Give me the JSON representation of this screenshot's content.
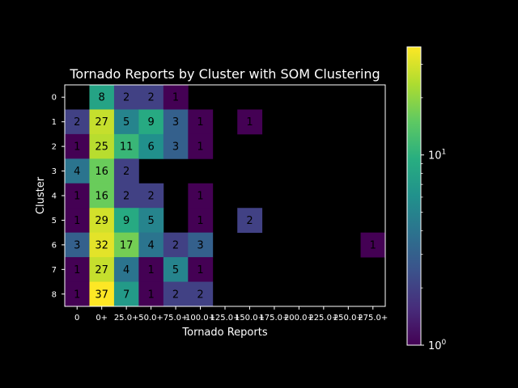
{
  "chart_data": {
    "type": "heatmap",
    "title": "Tornado Reports by Cluster with SOM Clustering",
    "xlabel": "Tornado Reports",
    "ylabel": "Cluster",
    "x_categories": [
      "0",
      "0+",
      "25.0+",
      "50.0+",
      "75.0+",
      "100.0+",
      "125.0+",
      "150.0+",
      "175.0+",
      "200.0+",
      "225.0+",
      "250.0+",
      "275.0+"
    ],
    "y_categories": [
      "0",
      "1",
      "2",
      "3",
      "4",
      "5",
      "6",
      "7",
      "8"
    ],
    "values": [
      [
        null,
        8,
        2,
        2,
        1,
        null,
        null,
        null,
        null,
        null,
        null,
        null,
        null
      ],
      [
        2,
        27,
        5,
        9,
        3,
        1,
        null,
        1,
        null,
        null,
        null,
        null,
        null
      ],
      [
        1,
        25,
        11,
        6,
        3,
        1,
        null,
        null,
        null,
        null,
        null,
        null,
        null
      ],
      [
        4,
        16,
        2,
        null,
        null,
        null,
        null,
        null,
        null,
        null,
        null,
        null,
        null
      ],
      [
        1,
        16,
        2,
        2,
        null,
        1,
        null,
        null,
        null,
        null,
        null,
        null,
        null
      ],
      [
        1,
        29,
        9,
        5,
        null,
        1,
        null,
        2,
        null,
        null,
        null,
        null,
        null
      ],
      [
        3,
        32,
        17,
        4,
        2,
        3,
        null,
        null,
        null,
        null,
        null,
        null,
        1
      ],
      [
        1,
        27,
        4,
        1,
        5,
        1,
        null,
        null,
        null,
        null,
        null,
        null,
        null
      ],
      [
        1,
        37,
        7,
        1,
        2,
        2,
        null,
        null,
        null,
        null,
        null,
        null,
        null
      ]
    ],
    "colorscale": "viridis",
    "color_scale_type": "log",
    "color_range": [
      1,
      37
    ],
    "colorbar": {
      "ticks": [
        {
          "base": "10",
          "exp": "0",
          "value": 1
        },
        {
          "base": "10",
          "exp": "1",
          "value": 10
        }
      ]
    },
    "background": "#000000",
    "text_color": "#ffffff",
    "cell_text_color": "#000000"
  }
}
